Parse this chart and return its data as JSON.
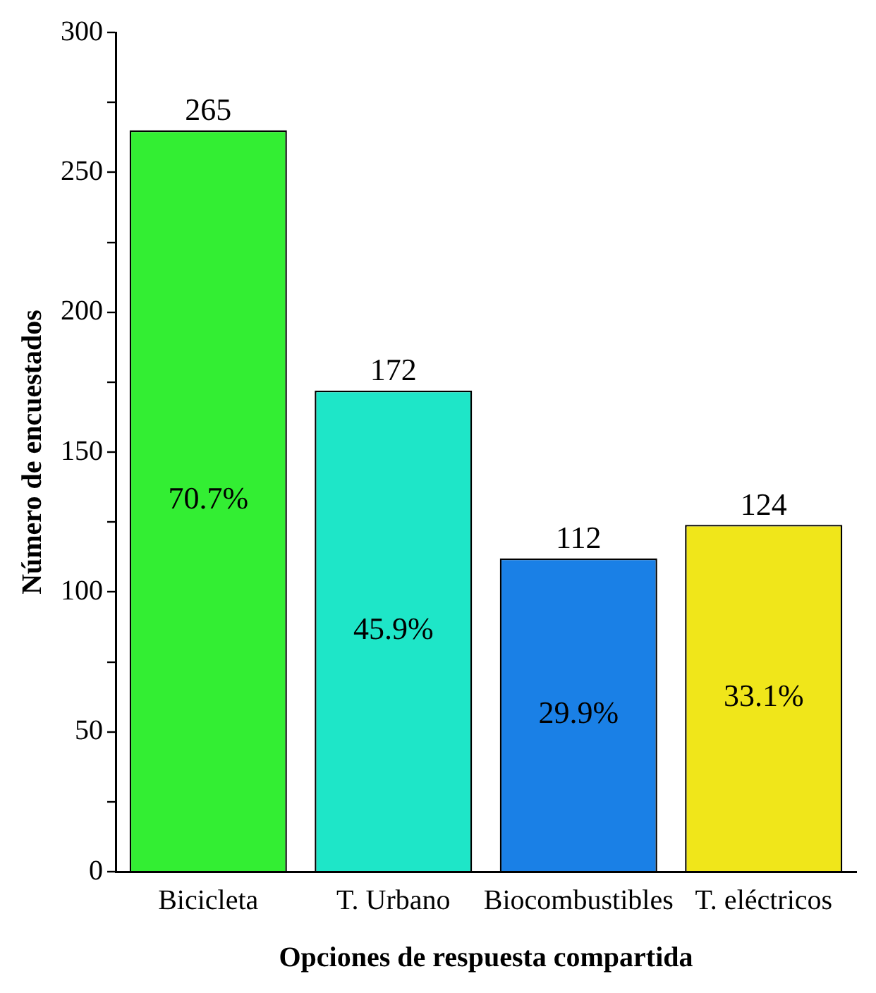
{
  "chart_data": {
    "type": "bar",
    "xlabel": "Opciones de respuesta compartida",
    "ylabel": "Número de encuestados",
    "categories": [
      "Bicicleta",
      "T. Urbano",
      "Biocombustibles",
      "T. eléctricos"
    ],
    "values": [
      265,
      172,
      112,
      124
    ],
    "colors": [
      "#33ee33",
      "#1ee6c8",
      "#1a80e6",
      "#f0e61a"
    ],
    "ylim": [
      0,
      300
    ],
    "yticks": [
      0,
      {
        "value": 25,
        "label": null
      },
      50,
      {
        "value": 75,
        "label": null
      },
      100,
      {
        "value": 125,
        "label": null
      },
      150,
      {
        "value": 175,
        "label": null
      },
      200,
      {
        "value": 225,
        "label": null
      },
      250,
      {
        "value": 275,
        "label": null
      },
      300
    ],
    "data_labels": true,
    "annotations": [
      "70.7%",
      "45.9%",
      "29.9%",
      "33.1%"
    ],
    "grid": false,
    "legend": false
  }
}
